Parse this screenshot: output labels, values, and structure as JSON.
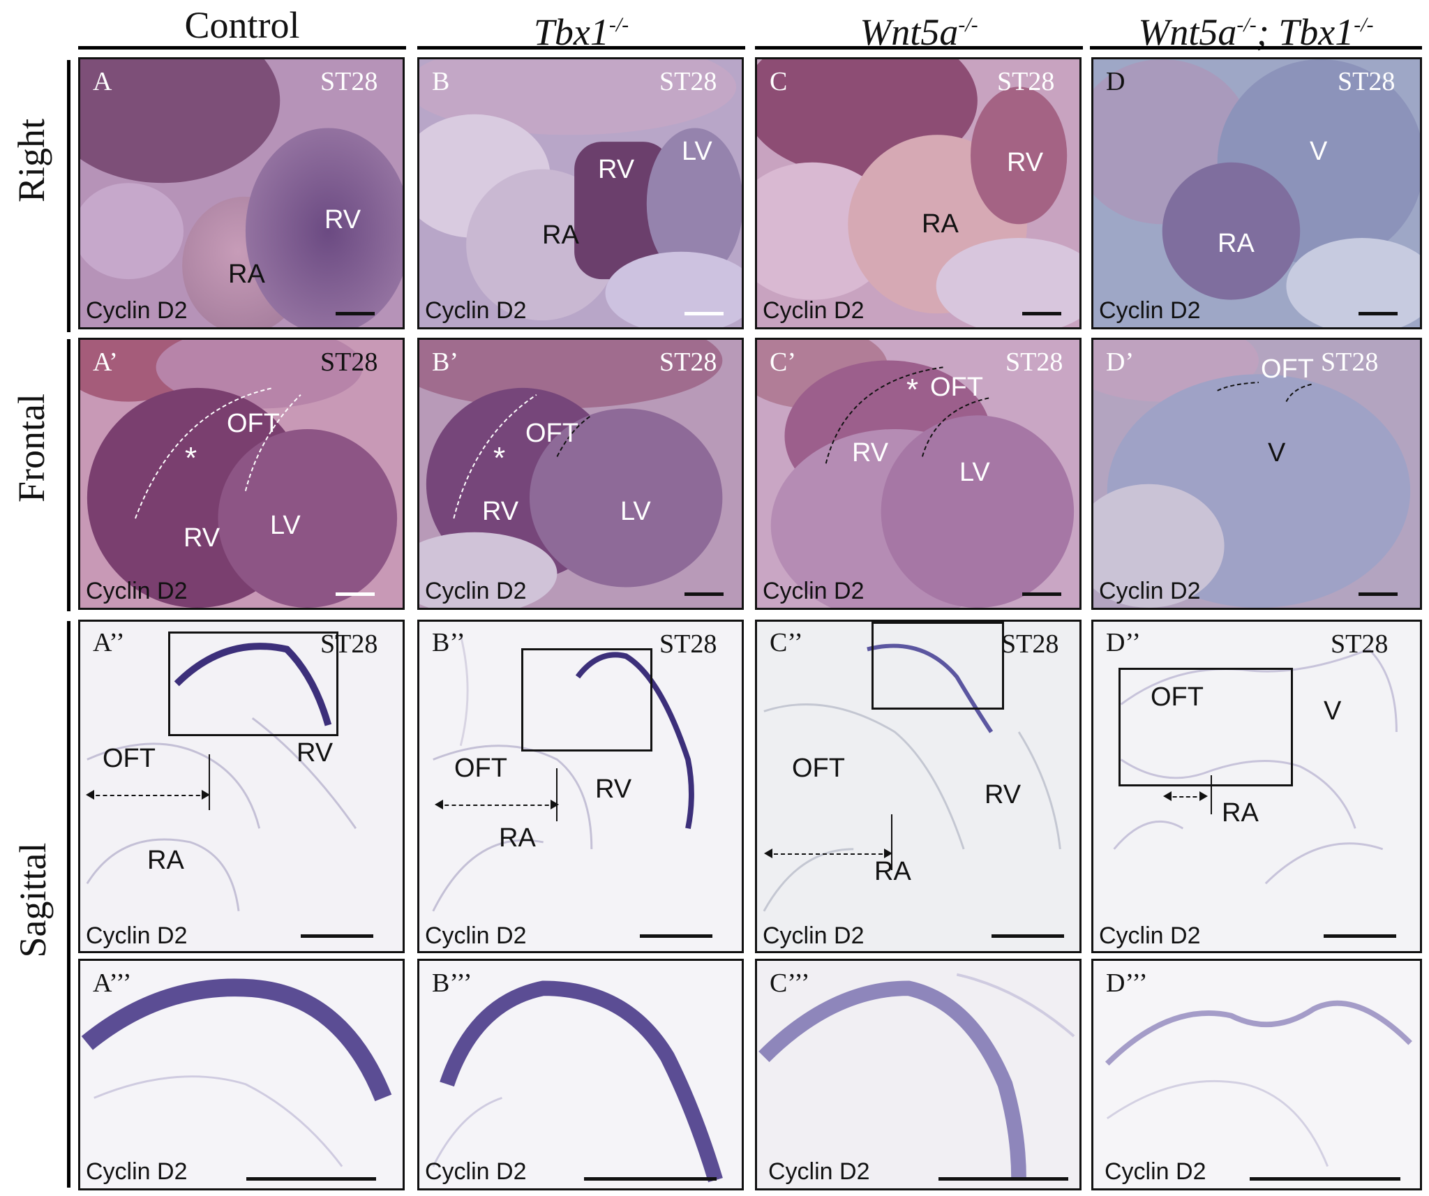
{
  "columns": [
    {
      "title": "Control",
      "style": "upright"
    },
    {
      "title": "Tbx1",
      "superscript": "-/-",
      "style": "italic"
    },
    {
      "title": "Wnt5a",
      "superscript": "-/-",
      "style": "italic"
    },
    {
      "title": "Wnt5a",
      "superscript": "-/-",
      "title_mid": "; Tbx1",
      "superscript2": "-/-",
      "style": "italic"
    }
  ],
  "rows": {
    "right": "Right",
    "frontal": "Frontal",
    "sagittal": "Sagittal"
  },
  "stage": "ST28",
  "marker": "Cyclin D2",
  "panels": {
    "A": {
      "id": "A",
      "labels": [
        "RV",
        "RA"
      ]
    },
    "B": {
      "id": "B",
      "labels": [
        "RV",
        "LV",
        "RA"
      ]
    },
    "C": {
      "id": "C",
      "labels": [
        "RV",
        "RA"
      ]
    },
    "D": {
      "id": "D",
      "labels": [
        "V",
        "RA"
      ]
    },
    "A1": {
      "id": "A’",
      "labels": [
        "OFT",
        "*",
        "RV",
        "LV"
      ]
    },
    "B1": {
      "id": "B’",
      "labels": [
        "OFT",
        "*",
        "RV",
        "LV"
      ]
    },
    "C1": {
      "id": "C’",
      "labels": [
        "*",
        "OFT",
        "RV",
        "LV"
      ]
    },
    "D1": {
      "id": "D’",
      "labels": [
        "OFT",
        "V"
      ]
    },
    "A2": {
      "id": "A’’",
      "labels": [
        "OFT",
        "RV",
        "RA"
      ]
    },
    "B2": {
      "id": "B’’",
      "labels": [
        "OFT",
        "RV",
        "RA"
      ]
    },
    "C2": {
      "id": "C’’",
      "labels": [
        "OFT",
        "RV",
        "RA"
      ]
    },
    "D2": {
      "id": "D’’",
      "labels": [
        "OFT",
        "V",
        "RA"
      ]
    },
    "A3": {
      "id": "A’’’"
    },
    "B3": {
      "id": "B’’’"
    },
    "C3": {
      "id": "C’’’"
    },
    "D3": {
      "id": "D’’’"
    }
  },
  "colors": {
    "stain": "#5b4a8a",
    "tissue_right": "#9a6f9e",
    "section_bg": "#f3f2f6"
  }
}
